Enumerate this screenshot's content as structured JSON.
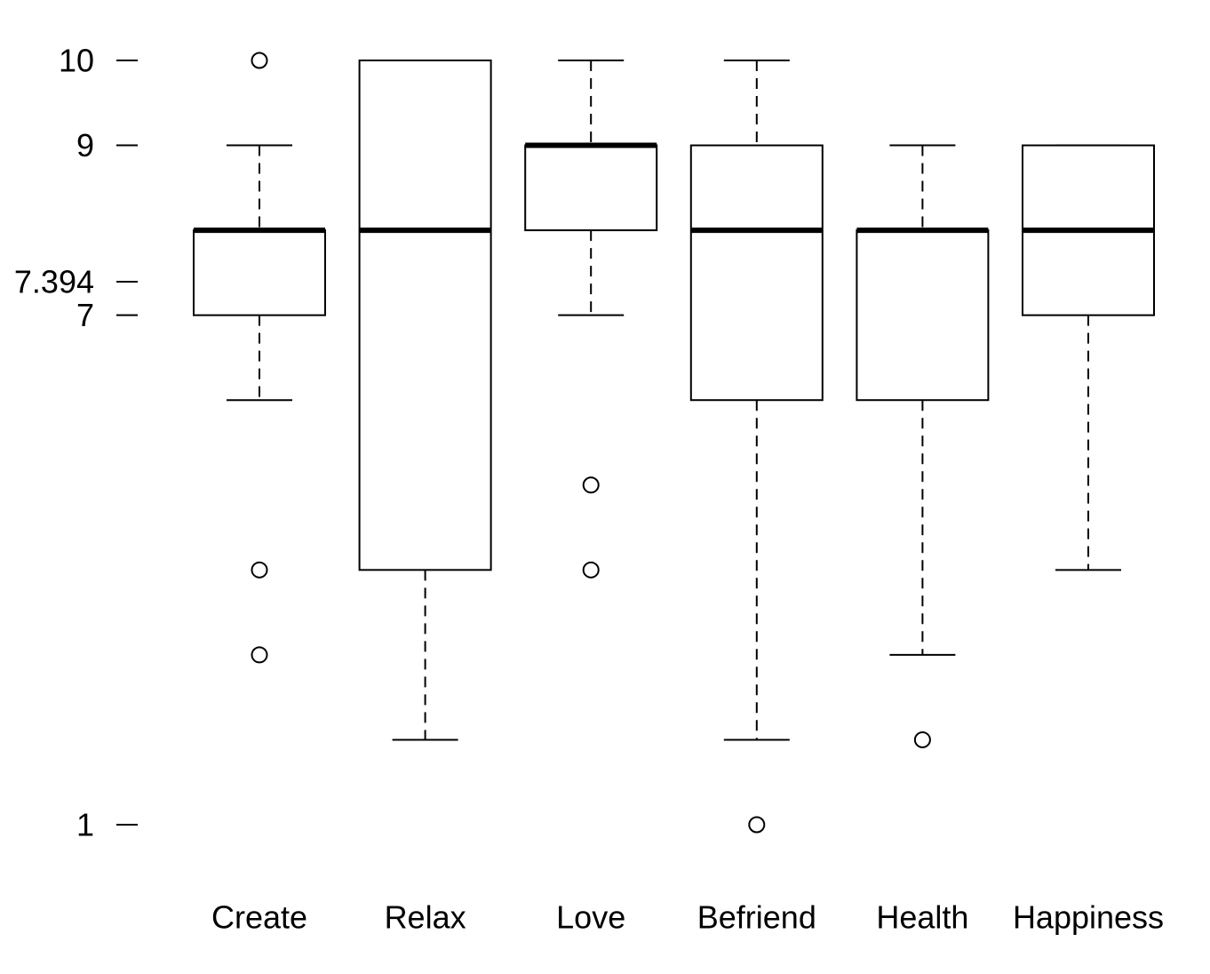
{
  "chart_data": {
    "type": "boxplot",
    "categories": [
      "Create",
      "Relax",
      "Love",
      "Befriend",
      "Health",
      "Happiness"
    ],
    "boxes": [
      {
        "name": "Create",
        "whisker_low": 6,
        "q1": 7,
        "median": 8,
        "q3": 8,
        "whisker_high": 9,
        "outliers": [
          10,
          4,
          3
        ]
      },
      {
        "name": "Relax",
        "whisker_low": 2,
        "q1": 4,
        "median": 8,
        "q3": 10,
        "whisker_high": 10,
        "outliers": []
      },
      {
        "name": "Love",
        "whisker_low": 7,
        "q1": 8,
        "median": 9,
        "q3": 9,
        "whisker_high": 10,
        "outliers": [
          5,
          4
        ]
      },
      {
        "name": "Befriend",
        "whisker_low": 2,
        "q1": 6,
        "median": 8,
        "q3": 9,
        "whisker_high": 10,
        "outliers": [
          1
        ]
      },
      {
        "name": "Health",
        "whisker_low": 3,
        "q1": 6,
        "median": 8,
        "q3": 8,
        "whisker_high": 9,
        "outliers": [
          2
        ]
      },
      {
        "name": "Happiness",
        "whisker_low": 4,
        "q1": 7,
        "median": 8,
        "q3": 9,
        "whisker_high": 9,
        "outliers": []
      }
    ],
    "yticks": [
      {
        "value": 10,
        "label": "10"
      },
      {
        "value": 9,
        "label": "9"
      },
      {
        "value": 7.394,
        "label": "7.394"
      },
      {
        "value": 7,
        "label": "7"
      },
      {
        "value": 1,
        "label": "1"
      }
    ],
    "ylim": [
      1,
      10
    ],
    "grid": false,
    "title": "",
    "xlabel": "",
    "ylabel": ""
  }
}
